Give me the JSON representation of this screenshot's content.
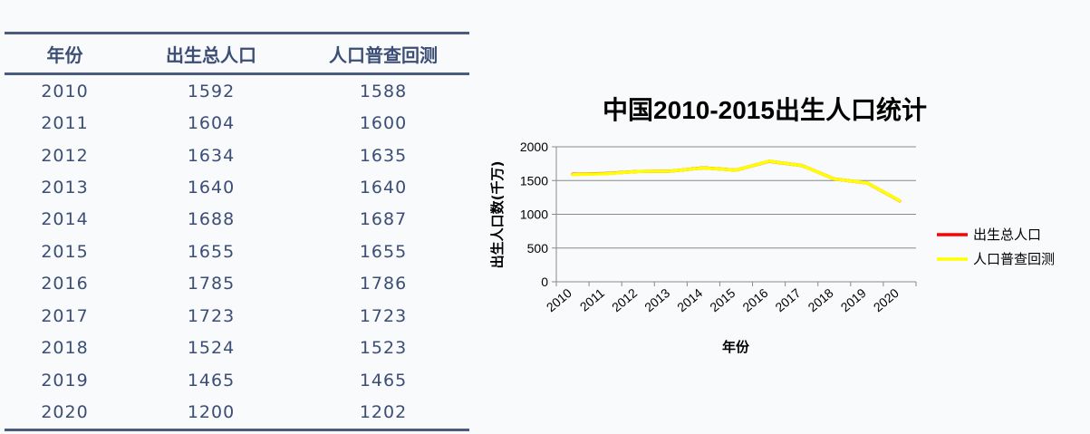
{
  "table": {
    "headers": [
      "年份",
      "出生总人口",
      "人口普查回测"
    ],
    "rows": [
      [
        "2010",
        "1592",
        "1588"
      ],
      [
        "2011",
        "1604",
        "1600"
      ],
      [
        "2012",
        "1634",
        "1635"
      ],
      [
        "2013",
        "1640",
        "1640"
      ],
      [
        "2014",
        "1688",
        "1687"
      ],
      [
        "2015",
        "1655",
        "1655"
      ],
      [
        "2016",
        "1785",
        "1786"
      ],
      [
        "2017",
        "1723",
        "1723"
      ],
      [
        "2018",
        "1524",
        "1523"
      ],
      [
        "2019",
        "1465",
        "1465"
      ],
      [
        "2020",
        "1200",
        "1202"
      ]
    ]
  },
  "chart_data": {
    "type": "line",
    "title": "中国2010-2015出生人口统计",
    "xlabel": "年份",
    "ylabel": "出生人口数(千万)",
    "categories": [
      "2010",
      "2011",
      "2012",
      "2013",
      "2014",
      "2015",
      "2016",
      "2017",
      "2018",
      "2019",
      "2020"
    ],
    "ylim": [
      0,
      2000
    ],
    "yticks": [
      0,
      500,
      1000,
      1500,
      2000
    ],
    "grid": true,
    "legend_position": "right",
    "series": [
      {
        "name": "出生总人口",
        "color": "#ff0000",
        "values": [
          1592,
          1604,
          1634,
          1640,
          1688,
          1655,
          1785,
          1723,
          1524,
          1465,
          1200
        ]
      },
      {
        "name": "人口普查回测",
        "color": "#ffff00",
        "values": [
          1588,
          1600,
          1635,
          1640,
          1687,
          1655,
          1786,
          1723,
          1523,
          1465,
          1202
        ]
      }
    ]
  }
}
